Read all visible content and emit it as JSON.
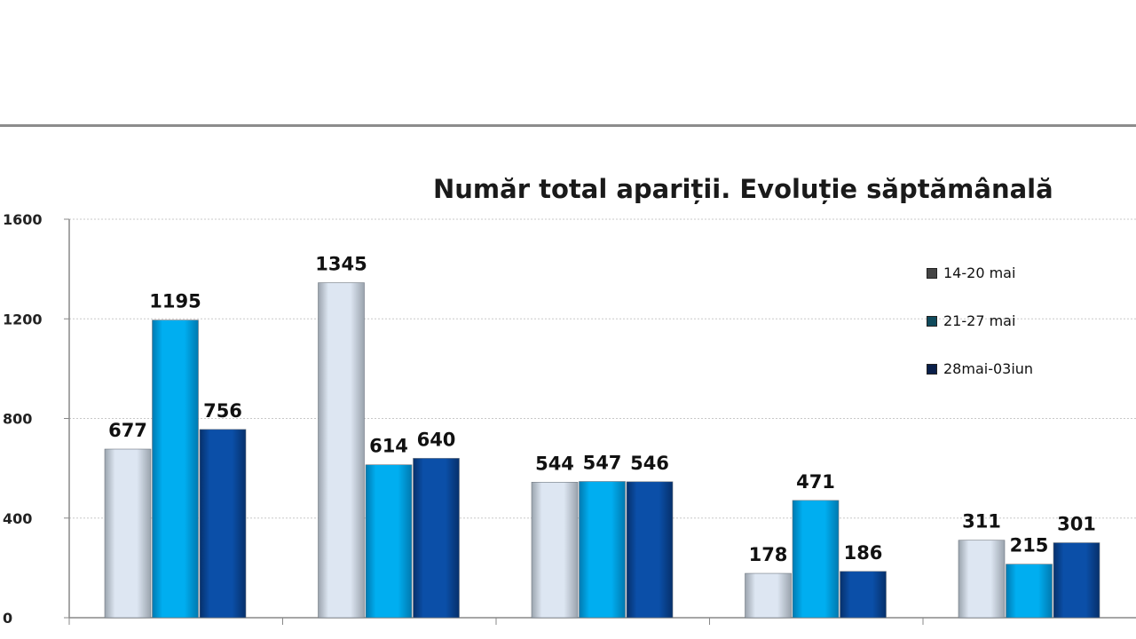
{
  "chart_data": {
    "type": "bar",
    "title": "Număr total apariții. Evoluție săptămânală",
    "categories": [
      "",
      "",
      "",
      "",
      ""
    ],
    "series": [
      {
        "name": "14-20 mai",
        "values": [
          677,
          1345,
          544,
          178,
          311
        ],
        "color": "#dde6f2"
      },
      {
        "name": "21-27 mai",
        "values": [
          1195,
          614,
          547,
          471,
          215
        ],
        "color": "#00aef0"
      },
      {
        "name": "28mai-03iun",
        "values": [
          756,
          640,
          546,
          186,
          301
        ],
        "color": "#0b4fa8"
      }
    ],
    "legend_swatch_colors": [
      "#444444",
      "#0f4a5c",
      "#0a1f4a"
    ],
    "ylim": [
      0,
      1600
    ],
    "yticks": [
      0,
      400,
      800,
      1200,
      1600
    ],
    "grid": true,
    "legend_position": "right"
  }
}
